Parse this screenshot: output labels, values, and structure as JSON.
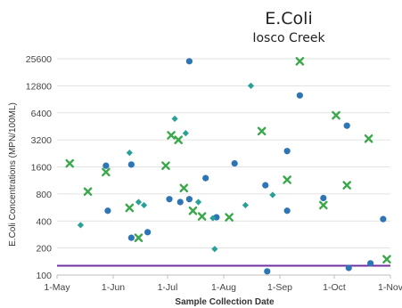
{
  "chart_data": {
    "type": "scatter",
    "title": "E.Coli",
    "subtitle": "Iosco Creek",
    "xlabel": "Sample Collection Date",
    "ylabel": "E.Coli Concentrations (MPN/100ML)",
    "y_scale": "log2",
    "ylim": [
      100,
      25600
    ],
    "y_ticks": [
      100,
      200,
      400,
      800,
      1600,
      3200,
      6400,
      12800,
      25600
    ],
    "y_tick_labels": [
      "100",
      "200",
      "400",
      "800",
      "1600",
      "3200",
      "6400",
      "12800",
      "25600"
    ],
    "xlim": [
      "2023-05-01",
      "2023-11-01"
    ],
    "x_ticks": [
      "2023-05-01",
      "2023-06-01",
      "2023-07-01",
      "2023-08-01",
      "2023-09-01",
      "2023-10-01",
      "2023-11-01"
    ],
    "x_tick_labels": [
      "1-May",
      "1-Jun",
      "1-Jul",
      "1-Aug",
      "1-Sep",
      "1-Oct",
      "1-Nov"
    ],
    "grid": true,
    "reference_line": {
      "y": 127,
      "color": "#7030a0"
    },
    "series": [
      {
        "marker": "circle",
        "color": "#2e75b6",
        "points": [
          [
            "2023-05-28",
            1650
          ],
          [
            "2023-05-29",
            520
          ],
          [
            "2023-06-11",
            1700
          ],
          [
            "2023-06-11",
            260
          ],
          [
            "2023-06-20",
            300
          ],
          [
            "2023-07-02",
            700
          ],
          [
            "2023-07-08",
            650
          ],
          [
            "2023-07-13",
            24000
          ],
          [
            "2023-07-13",
            700
          ],
          [
            "2023-07-22",
            1200
          ],
          [
            "2023-07-28",
            440
          ],
          [
            "2023-08-07",
            1750
          ],
          [
            "2023-08-24",
            1000
          ],
          [
            "2023-08-25",
            110
          ],
          [
            "2023-09-05",
            2400
          ],
          [
            "2023-09-05",
            520
          ],
          [
            "2023-09-12",
            10000
          ],
          [
            "2023-09-25",
            720
          ],
          [
            "2023-10-08",
            4600
          ],
          [
            "2023-10-09",
            120
          ],
          [
            "2023-10-21",
            135
          ],
          [
            "2023-10-28",
            420
          ]
        ]
      },
      {
        "marker": "x",
        "color": "#3aa84b",
        "points": [
          [
            "2023-05-08",
            1750
          ],
          [
            "2023-05-18",
            850
          ],
          [
            "2023-05-28",
            1400
          ],
          [
            "2023-06-10",
            560
          ],
          [
            "2023-06-15",
            260
          ],
          [
            "2023-06-30",
            1650
          ],
          [
            "2023-07-03",
            3600
          ],
          [
            "2023-07-07",
            3200
          ],
          [
            "2023-07-10",
            930
          ],
          [
            "2023-07-15",
            520
          ],
          [
            "2023-07-20",
            450
          ],
          [
            "2023-08-04",
            440
          ],
          [
            "2023-08-22",
            4000
          ],
          [
            "2023-09-05",
            1150
          ],
          [
            "2023-09-12",
            24000
          ],
          [
            "2023-09-25",
            600
          ],
          [
            "2023-10-02",
            6000
          ],
          [
            "2023-10-08",
            1000
          ],
          [
            "2023-10-20",
            3300
          ],
          [
            "2023-10-30",
            150
          ]
        ]
      },
      {
        "marker": "diamond",
        "color": "#2aa198",
        "points": [
          [
            "2023-05-14",
            360
          ],
          [
            "2023-06-10",
            2300
          ],
          [
            "2023-06-15",
            650
          ],
          [
            "2023-06-18",
            600
          ],
          [
            "2023-07-05",
            5500
          ],
          [
            "2023-07-11",
            3800
          ],
          [
            "2023-07-18",
            650
          ],
          [
            "2023-07-26",
            430
          ],
          [
            "2023-07-27",
            195
          ],
          [
            "2023-08-13",
            600
          ],
          [
            "2023-08-16",
            12800
          ],
          [
            "2023-08-28",
            780
          ]
        ]
      }
    ]
  }
}
